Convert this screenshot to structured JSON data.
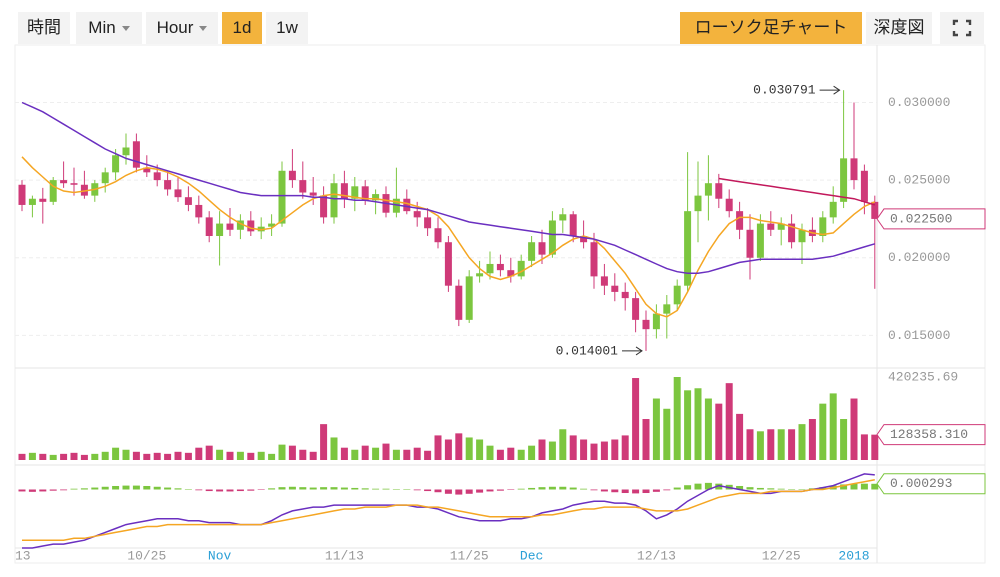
{
  "toolbar": {
    "intervals": [
      "時間",
      "Min",
      "Hour",
      "1d",
      "1w"
    ],
    "views": [
      "ローソク足チャート",
      "深度図"
    ]
  },
  "chart_data": {
    "type": "candlestick",
    "categories": [
      "13",
      null,
      null,
      null,
      null,
      null,
      null,
      null,
      null,
      null,
      null,
      null,
      "10/25",
      null,
      null,
      null,
      null,
      null,
      null,
      "Nov",
      null,
      null,
      null,
      null,
      null,
      null,
      null,
      null,
      null,
      null,
      null,
      "11/13",
      null,
      null,
      null,
      null,
      null,
      null,
      null,
      null,
      null,
      null,
      null,
      "11/25",
      null,
      null,
      null,
      null,
      null,
      "Dec",
      null,
      null,
      null,
      null,
      null,
      null,
      null,
      null,
      null,
      null,
      null,
      "12/13",
      null,
      null,
      null,
      null,
      null,
      null,
      null,
      null,
      null,
      null,
      null,
      "12/25",
      null,
      null,
      null,
      null,
      null,
      null,
      "2018",
      null,
      null
    ],
    "open": [
      0.0247,
      0.0234,
      0.0238,
      0.0236,
      0.025,
      0.0248,
      0.0247,
      0.024,
      0.0248,
      0.0255,
      0.0266,
      0.0275,
      0.0258,
      0.0255,
      0.025,
      0.0244,
      0.0239,
      0.0234,
      0.0226,
      0.0214,
      0.0222,
      0.0218,
      0.0224,
      0.0217,
      0.022,
      0.0222,
      0.0256,
      0.025,
      0.0242,
      0.024,
      0.0226,
      0.0248,
      0.0238,
      0.0246,
      0.0237,
      0.0241,
      0.0229,
      0.0238,
      0.023,
      0.0226,
      0.0219,
      0.021,
      0.0182,
      0.016,
      0.0188,
      0.019,
      0.0196,
      0.0192,
      0.0188,
      0.0198,
      0.021,
      0.0202,
      0.0224,
      0.0228,
      0.0214,
      0.021,
      0.0188,
      0.0182,
      0.0178,
      0.0174,
      0.016,
      0.0154,
      0.0164,
      0.017,
      0.0182,
      0.023,
      0.024,
      0.0248,
      0.0238,
      0.023,
      0.0218,
      0.02,
      0.0222,
      0.0218,
      0.0222,
      0.021,
      0.0218,
      0.0214,
      0.0226,
      0.0236,
      0.0264,
      0.0256,
      0.0236
    ],
    "high": [
      0.025,
      0.024,
      0.0245,
      0.0252,
      0.0262,
      0.0258,
      0.0256,
      0.025,
      0.0258,
      0.027,
      0.028,
      0.028,
      0.0266,
      0.026,
      0.0256,
      0.0252,
      0.0246,
      0.024,
      0.023,
      0.023,
      0.0232,
      0.0228,
      0.023,
      0.0226,
      0.0228,
      0.0262,
      0.027,
      0.0262,
      0.0252,
      0.0246,
      0.0254,
      0.0256,
      0.0252,
      0.025,
      0.0244,
      0.0246,
      0.0258,
      0.0244,
      0.0236,
      0.0232,
      0.0226,
      0.0214,
      0.0186,
      0.0192,
      0.0198,
      0.0204,
      0.0202,
      0.02,
      0.0202,
      0.0214,
      0.0218,
      0.023,
      0.0232,
      0.023,
      0.0224,
      0.0216,
      0.0196,
      0.019,
      0.0184,
      0.0178,
      0.0166,
      0.017,
      0.0176,
      0.0186,
      0.0268,
      0.0262,
      0.0266,
      0.0254,
      0.0244,
      0.0236,
      0.0228,
      0.0228,
      0.023,
      0.0226,
      0.0228,
      0.0222,
      0.0226,
      0.023,
      0.0246,
      0.030791,
      0.03,
      0.026,
      0.024
    ],
    "low": [
      0.023,
      0.0226,
      0.0222,
      0.0234,
      0.0245,
      0.024,
      0.0238,
      0.0236,
      0.0242,
      0.025,
      0.026,
      0.0255,
      0.0252,
      0.0246,
      0.024,
      0.0236,
      0.023,
      0.0222,
      0.021,
      0.0195,
      0.0214,
      0.0212,
      0.0214,
      0.0212,
      0.0214,
      0.022,
      0.0245,
      0.0238,
      0.0234,
      0.0222,
      0.0222,
      0.0232,
      0.023,
      0.0234,
      0.0228,
      0.0226,
      0.0226,
      0.0228,
      0.022,
      0.0214,
      0.0206,
      0.0178,
      0.0156,
      0.0158,
      0.0184,
      0.0186,
      0.0188,
      0.0184,
      0.0186,
      0.0194,
      0.0196,
      0.02,
      0.0216,
      0.021,
      0.0206,
      0.018,
      0.0176,
      0.0172,
      0.0166,
      0.0152,
      0.014001,
      0.0148,
      0.0148,
      0.0166,
      0.0178,
      0.021,
      0.0224,
      0.0232,
      0.0226,
      0.0212,
      0.0186,
      0.0198,
      0.0214,
      0.0208,
      0.0206,
      0.0196,
      0.021,
      0.021,
      0.0222,
      0.0232,
      0.0244,
      0.0228,
      0.018
    ],
    "close": [
      0.0234,
      0.0238,
      0.0236,
      0.025,
      0.0248,
      0.0247,
      0.024,
      0.0248,
      0.0255,
      0.0266,
      0.0271,
      0.0258,
      0.0255,
      0.025,
      0.0244,
      0.0239,
      0.0234,
      0.0226,
      0.0214,
      0.0222,
      0.0218,
      0.0224,
      0.0217,
      0.022,
      0.0222,
      0.0256,
      0.025,
      0.0242,
      0.024,
      0.0226,
      0.0248,
      0.0238,
      0.0246,
      0.0237,
      0.0241,
      0.0229,
      0.0238,
      0.023,
      0.0226,
      0.0219,
      0.021,
      0.0182,
      0.016,
      0.0188,
      0.019,
      0.0196,
      0.0192,
      0.0188,
      0.0198,
      0.021,
      0.0202,
      0.0224,
      0.0228,
      0.0214,
      0.021,
      0.0188,
      0.0182,
      0.0178,
      0.0174,
      0.016,
      0.0154,
      0.0164,
      0.017,
      0.0182,
      0.023,
      0.024,
      0.0248,
      0.0238,
      0.023,
      0.0218,
      0.02,
      0.0222,
      0.0218,
      0.0222,
      0.021,
      0.0218,
      0.0214,
      0.0226,
      0.0236,
      0.0264,
      0.025,
      0.0236,
      0.0225
    ],
    "up_color": "#7cc63f",
    "down_color": "#cf3a78",
    "lines": [
      {
        "color": "#f5a623",
        "values": [
          0.0265,
          0.0258,
          0.0252,
          0.0246,
          0.0243,
          0.0242,
          0.0243,
          0.0244,
          0.0246,
          0.0249,
          0.0253,
          0.0256,
          0.0258,
          0.0257,
          0.0255,
          0.0252,
          0.0248,
          0.0243,
          0.0237,
          0.0231,
          0.0226,
          0.0222,
          0.0219,
          0.0218,
          0.0219,
          0.0224,
          0.0229,
          0.0234,
          0.0238,
          0.024,
          0.0241,
          0.024,
          0.0239,
          0.0238,
          0.0238,
          0.0237,
          0.0236,
          0.0235,
          0.0233,
          0.0231,
          0.0227,
          0.022,
          0.021,
          0.02,
          0.0193,
          0.0188,
          0.0186,
          0.0188,
          0.0191,
          0.0195,
          0.0199,
          0.0203,
          0.0208,
          0.0212,
          0.0214,
          0.0212,
          0.0206,
          0.0198,
          0.019,
          0.018,
          0.017,
          0.0164,
          0.0162,
          0.0166,
          0.0178,
          0.0192,
          0.0204,
          0.0214,
          0.0222,
          0.0226,
          0.0226,
          0.0224,
          0.0223,
          0.0222,
          0.022,
          0.0218,
          0.0216,
          0.0215,
          0.0216,
          0.0222,
          0.0228,
          0.0233,
          0.0236
        ]
      },
      {
        "color": "#6a2fc0",
        "values": [
          0.03,
          0.0297,
          0.0294,
          0.029,
          0.0286,
          0.0282,
          0.0278,
          0.0274,
          0.027,
          0.0267,
          0.0264,
          0.0262,
          0.026,
          0.0258,
          0.0256,
          0.0254,
          0.0252,
          0.025,
          0.0248,
          0.0246,
          0.0244,
          0.0242,
          0.0241,
          0.024,
          0.024,
          0.024,
          0.024,
          0.024,
          0.0239,
          0.0239,
          0.0238,
          0.0238,
          0.0237,
          0.0237,
          0.0236,
          0.0235,
          0.0234,
          0.0233,
          0.0232,
          0.0231,
          0.0229,
          0.0227,
          0.0225,
          0.0223,
          0.0222,
          0.0221,
          0.022,
          0.0219,
          0.0218,
          0.0217,
          0.0216,
          0.0215,
          0.0215,
          0.0214,
          0.0213,
          0.0212,
          0.021,
          0.0208,
          0.0205,
          0.0202,
          0.0199,
          0.0196,
          0.0193,
          0.0191,
          0.019,
          0.019,
          0.0191,
          0.0193,
          0.0195,
          0.0197,
          0.0198,
          0.0199,
          0.0199,
          0.0199,
          0.0199,
          0.0199,
          0.0199,
          0.02,
          0.0201,
          0.0203,
          0.0205,
          0.0207,
          0.0209
        ]
      },
      {
        "color": "#c2185b",
        "values": [
          null,
          null,
          null,
          null,
          null,
          null,
          null,
          null,
          null,
          null,
          null,
          null,
          null,
          null,
          null,
          null,
          null,
          null,
          null,
          null,
          null,
          null,
          null,
          null,
          null,
          null,
          null,
          null,
          null,
          null,
          null,
          null,
          null,
          null,
          null,
          null,
          null,
          null,
          null,
          null,
          null,
          null,
          null,
          null,
          null,
          null,
          null,
          null,
          null,
          null,
          null,
          null,
          null,
          null,
          null,
          null,
          null,
          null,
          null,
          null,
          null,
          null,
          null,
          null,
          null,
          null,
          null,
          0.0251,
          0.025,
          0.0249,
          0.0248,
          0.0247,
          0.0246,
          0.0245,
          0.0244,
          0.0243,
          0.0242,
          0.0241,
          0.024,
          0.0239,
          0.0238,
          0.0236,
          0.0234
        ]
      }
    ],
    "ylim": [
      0.0129,
      0.0337
    ],
    "yticks": [
      {
        "value": 0.03,
        "label": "0.030000"
      },
      {
        "value": 0.025,
        "label": "0.025000"
      },
      {
        "value": 0.02,
        "label": "0.020000"
      },
      {
        "value": 0.015,
        "label": "0.015000"
      }
    ],
    "grid": true,
    "high_label": "0.030791",
    "low_label": "0.014001",
    "current_price_label": "0.022500",
    "volume": {
      "values": [
        31100,
        36300,
        31100,
        25900,
        31100,
        36300,
        25900,
        31100,
        41500,
        62300,
        51900,
        41500,
        31100,
        36300,
        31100,
        41500,
        36300,
        62300,
        72600,
        51900,
        41500,
        41500,
        36300,
        41500,
        31100,
        77800,
        72600,
        51900,
        41500,
        181600,
        114100,
        62300,
        51900,
        72600,
        62300,
        83000,
        51900,
        51900,
        62300,
        46700,
        124500,
        103800,
        134900,
        114100,
        103800,
        72600,
        51900,
        62300,
        51900,
        72600,
        103800,
        93400,
        155600,
        124500,
        103800,
        83000,
        93400,
        103800,
        124500,
        415000,
        207500,
        311300,
        259400,
        420235.69,
        352800,
        363200,
        311300,
        285300,
        389100,
        233500,
        155600,
        145300,
        155600,
        155600,
        155600,
        181600,
        207500,
        285300,
        337200,
        207500,
        311300,
        129700,
        128358.31
      ],
      "max_label": "420235.69",
      "current_label": "128358.310"
    },
    "macd": {
      "histogram": [
        -0.0001,
        -0.00012,
        -0.0001,
        -6e-05,
        -4e-05,
        4e-05,
        6e-05,
        0.0001,
        0.00014,
        0.00018,
        0.0002,
        0.0002,
        0.00018,
        0.00014,
        0.0001,
        6e-05,
        2e-05,
        -4e-05,
        -8e-05,
        -0.0001,
        -0.0001,
        -8e-05,
        -6e-05,
        -2e-05,
        6e-05,
        0.00012,
        0.00014,
        0.00012,
        0.0001,
        0.00012,
        0.00012,
        0.0001,
        8e-05,
        6e-05,
        4e-05,
        4e-05,
        2e-05,
        0.0,
        -4e-05,
        -8e-05,
        -0.00014,
        -0.00022,
        -0.00026,
        -0.00022,
        -0.00016,
        -0.0001,
        -6e-05,
        -2e-05,
        4e-05,
        8e-05,
        0.00012,
        0.00014,
        0.00014,
        0.0001,
        4e-05,
        -4e-05,
        -0.0001,
        -0.00014,
        -0.00018,
        -0.0002,
        -0.00018,
        -0.00012,
        -4e-05,
        0.0001,
        0.00022,
        0.0003,
        0.00034,
        0.0003,
        0.00024,
        0.00018,
        0.00012,
        8e-05,
        6e-05,
        4e-05,
        2e-05,
        2e-05,
        6e-05,
        0.00012,
        0.0002,
        0.00026,
        0.0003,
        0.0003,
        0.000293
      ],
      "lines": [
        {
          "color": "#6a2fc0",
          "values": [
            -0.003,
            -0.003,
            -0.0029,
            -0.0028,
            -0.0028,
            -0.0027,
            -0.0026,
            -0.0024,
            -0.0022,
            -0.002,
            -0.0018,
            -0.0017,
            -0.0016,
            -0.0015,
            -0.0015,
            -0.0015,
            -0.0016,
            -0.0016,
            -0.0017,
            -0.0017,
            -0.0017,
            -0.0018,
            -0.0018,
            -0.0018,
            -0.0016,
            -0.0013,
            -0.0011,
            -0.001,
            -0.0009,
            -0.0009,
            -0.0008,
            -0.0008,
            -0.0008,
            -0.0008,
            -0.0008,
            -0.0008,
            -0.0008,
            -0.0008,
            -0.0009,
            -0.0009,
            -0.001,
            -0.0012,
            -0.0014,
            -0.0015,
            -0.0016,
            -0.0016,
            -0.0016,
            -0.0015,
            -0.0015,
            -0.0014,
            -0.0012,
            -0.0011,
            -0.001,
            -0.0008,
            -0.0007,
            -0.0006,
            -0.0006,
            -0.0007,
            -0.0007,
            -0.0008,
            -0.0011,
            -0.0015,
            -0.0013,
            -0.001,
            -0.0006,
            -0.0003,
            0.0,
            0.0002,
            0.0001,
            0.0,
            -0.0001,
            -0.0002,
            -0.0002,
            -0.0001,
            -0.0001,
            -0.0001,
            0.0,
            0.0001,
            0.0002,
            0.0004,
            0.0006,
            0.0008,
            0.00075
          ]
        },
        {
          "color": "#f5a623",
          "values": [
            -0.0026,
            -0.0026,
            -0.0026,
            -0.0026,
            -0.0026,
            -0.0025,
            -0.0025,
            -0.0024,
            -0.0023,
            -0.0022,
            -0.0021,
            -0.002,
            -0.0019,
            -0.0019,
            -0.0018,
            -0.0018,
            -0.0018,
            -0.0018,
            -0.0018,
            -0.0018,
            -0.0018,
            -0.0018,
            -0.0018,
            -0.0018,
            -0.0017,
            -0.0016,
            -0.0015,
            -0.0014,
            -0.0013,
            -0.0012,
            -0.0011,
            -0.001,
            -0.001,
            -0.0009,
            -0.0009,
            -0.0009,
            -0.0008,
            -0.0008,
            -0.0008,
            -0.0009,
            -0.0009,
            -0.001,
            -0.0011,
            -0.0012,
            -0.0013,
            -0.0014,
            -0.0014,
            -0.0014,
            -0.0014,
            -0.0014,
            -0.0013,
            -0.0013,
            -0.0012,
            -0.0011,
            -0.001,
            -0.001,
            -0.0009,
            -0.0009,
            -0.0009,
            -0.0009,
            -0.001,
            -0.0011,
            -0.0011,
            -0.0011,
            -0.001,
            -0.0008,
            -0.0006,
            -0.0004,
            -0.0003,
            -0.0002,
            -0.0002,
            -0.0002,
            -0.0001,
            -0.0001,
            -0.0001,
            -0.0001,
            0.0,
            0.0,
            0.0001,
            0.0002,
            0.0003,
            0.0004,
            0.0005
          ]
        }
      ],
      "ylim": [
        -0.003,
        0.001
      ],
      "current_label": "0.000293"
    }
  }
}
